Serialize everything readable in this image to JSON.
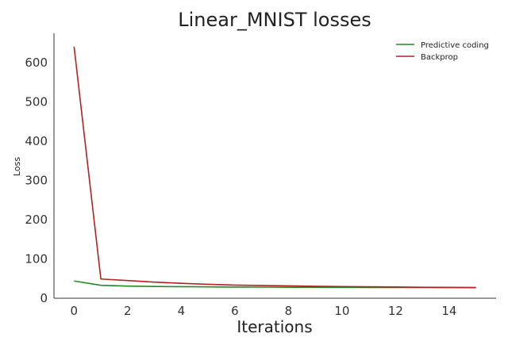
{
  "chart_data": {
    "type": "line",
    "title": "Linear_MNIST losses",
    "xlabel": "Iterations",
    "ylabel": "Loss",
    "xlim": [
      -0.75,
      15.75
    ],
    "ylim": [
      0,
      675
    ],
    "xticks": [
      0,
      2,
      4,
      6,
      8,
      10,
      12,
      14
    ],
    "yticks": [
      0,
      100,
      200,
      300,
      400,
      500,
      600
    ],
    "grid": false,
    "legend_position": "top-right",
    "series": [
      {
        "name": "Predictive coding",
        "color": "#228b22",
        "x": [
          0,
          1,
          2,
          3,
          4,
          5,
          6,
          7,
          8,
          9,
          10,
          11,
          12,
          13,
          14,
          15
        ],
        "y": [
          44,
          33,
          31,
          30,
          29.5,
          29,
          28.5,
          28.3,
          28,
          27.8,
          27.6,
          27.5,
          27.4,
          27.3,
          27.2,
          27
        ]
      },
      {
        "name": "Backprop",
        "color": "#b22222",
        "x": [
          0,
          1,
          2,
          3,
          4,
          5,
          6,
          7,
          8,
          9,
          10,
          11,
          12,
          13,
          14,
          15
        ],
        "y": [
          641,
          49,
          45,
          41,
          38,
          35.5,
          33.5,
          32.5,
          31.5,
          30.5,
          29.8,
          29.2,
          28.6,
          28,
          27.7,
          27.3
        ]
      }
    ]
  }
}
